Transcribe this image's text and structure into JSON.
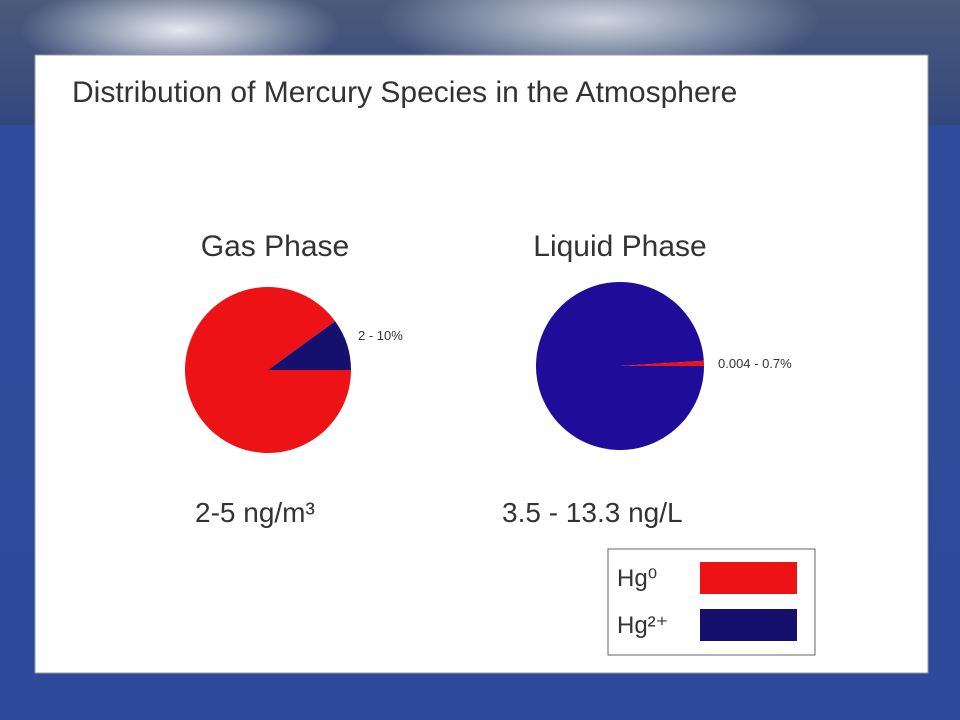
{
  "title": "Distribution of Mercury Species in the Atmosphere",
  "chart_data": [
    {
      "type": "pie",
      "title": "Gas Phase",
      "categories": [
        "Hg⁰",
        "Hg²⁺"
      ],
      "colors": [
        "#ec1216",
        "#15106e"
      ],
      "values": [
        90,
        10
      ],
      "annotation": "2 - 10%",
      "caption": "2-5 ng/m³"
    },
    {
      "type": "pie",
      "title": "Liquid Phase",
      "categories": [
        "Hg²⁺",
        "Hg⁰"
      ],
      "colors": [
        "#1f0c99",
        "#ec1216"
      ],
      "values": [
        99,
        1
      ],
      "annotation": "0.004 - 0.7%",
      "caption": "3.5 - 13.3 ng/L"
    }
  ]
}
